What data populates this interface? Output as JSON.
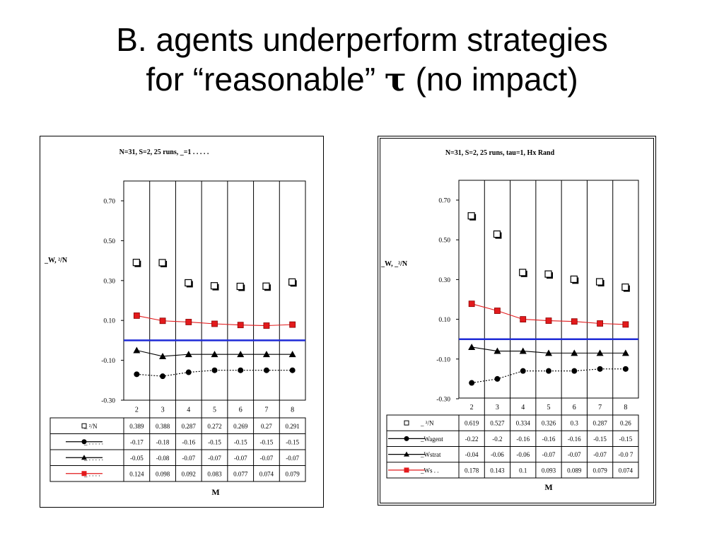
{
  "slide": {
    "title_line1": "B. agents underperform strategies",
    "title_line2_pre": "for “reasonable” ",
    "title_tau": "τ",
    "title_line2_post": " (no impact)"
  },
  "chart_data": [
    {
      "type": "line",
      "title": "N=31,  S=2,  25   runs,   _=1  .  .  .  .  .",
      "ylabel": "_W,   ²/N",
      "xlabel": "M",
      "x": [
        "2",
        "3",
        "4",
        "5",
        "6",
        "7",
        "8"
      ],
      "ylim": [
        -0.3,
        0.8
      ],
      "yticks": [
        "0.70",
        "0.50",
        "0.30",
        "0.10",
        "-0.10",
        "-0.30"
      ],
      "hline": 0.0,
      "series": [
        {
          "name": "_ ²/N",
          "marker": "open-square",
          "values": [
            0.389,
            0.388,
            0.287,
            0.272,
            0.269,
            0.27,
            0.291
          ],
          "labels": [
            "0.389",
            "0.388",
            "0.287",
            "0.272",
            "0.269",
            "0.27",
            "0.291"
          ]
        },
        {
          "name": "_ .  .  .  .  .",
          "marker": "circle",
          "values": [
            -0.17,
            -0.18,
            -0.16,
            -0.15,
            -0.15,
            -0.15,
            -0.15
          ],
          "labels": [
            "-0.17",
            "-0.18",
            "-0.16",
            "-0.15",
            "-0.15",
            "-0.15",
            "-0.15"
          ]
        },
        {
          "name": "_ .  .  .  .  .",
          "marker": "triangle",
          "values": [
            -0.05,
            -0.08,
            -0.07,
            -0.07,
            -0.07,
            -0.07,
            -0.07
          ],
          "labels": [
            "-0.05",
            "-0.08",
            "-0.07",
            "-0.07",
            "-0.07",
            "-0.07",
            "-0.07"
          ]
        },
        {
          "name": "_ .   .   .   .",
          "marker": "red-square",
          "values": [
            0.124,
            0.098,
            0.092,
            0.083,
            0.077,
            0.074,
            0.079
          ],
          "labels": [
            "0.124",
            "0.098",
            "0.092",
            "0.083",
            "0.077",
            "0.074",
            "0.079"
          ]
        }
      ]
    },
    {
      "type": "line",
      "title": "N=31,   S=2,  25  runs,  tau=1, Hx Rand",
      "ylabel": "_W, _²/N",
      "xlabel": "M",
      "x": [
        "2",
        "3",
        "4",
        "5",
        "6",
        "7",
        "8"
      ],
      "ylim": [
        -0.3,
        0.8
      ],
      "yticks": [
        "0.70",
        "0.50",
        "0.30",
        "0.10",
        "-0.10",
        "-0.30"
      ],
      "hline": 0.0,
      "series": [
        {
          "name": "_ ²/N",
          "marker": "open-square",
          "values": [
            0.619,
            0.527,
            0.334,
            0.326,
            0.3,
            0.287,
            0.26
          ],
          "labels": [
            "0.619",
            "0.527",
            "0.334",
            "0.326",
            "0.3",
            "0.287",
            "0.26"
          ]
        },
        {
          "name": "_Wagent",
          "marker": "circle",
          "values": [
            -0.22,
            -0.2,
            -0.16,
            -0.16,
            -0.16,
            -0.15,
            -0.15
          ],
          "labels": [
            "-0.22",
            "-0.2",
            "-0.16",
            "-0.16",
            "-0.16",
            "-0.15",
            "-0.15"
          ]
        },
        {
          "name": "_Wstrat",
          "marker": "triangle",
          "values": [
            -0.04,
            -0.06,
            -0.06,
            -0.07,
            -0.07,
            -0.07,
            -0.07
          ],
          "labels": [
            "-0.04",
            "-0.06",
            "-0.06",
            "-0.07",
            "-0.07",
            "-0.07",
            "-0.0 7"
          ]
        },
        {
          "name": "_Ws  .  .",
          "marker": "red-square",
          "values": [
            0.178,
            0.143,
            0.1,
            0.093,
            0.089,
            0.079,
            0.074
          ],
          "labels": [
            "0.178",
            "0.143",
            "0.1",
            "0.093",
            "0.089",
            "0.079",
            "0.074"
          ]
        }
      ]
    }
  ]
}
